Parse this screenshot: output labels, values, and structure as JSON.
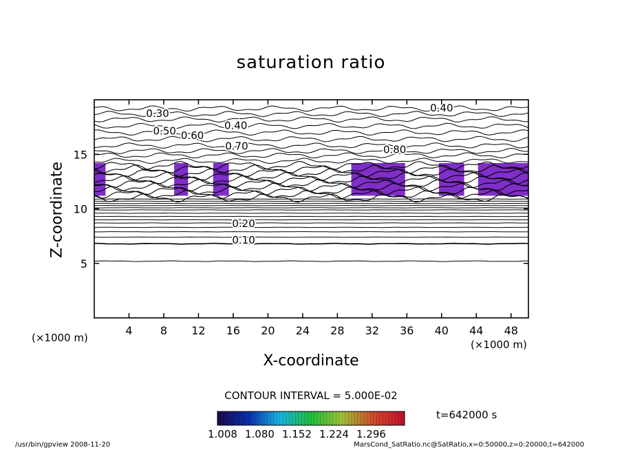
{
  "chart_data": {
    "type": "contour",
    "title": "saturation ratio",
    "xlabel": "X-coordinate",
    "ylabel": "Z-coordinate",
    "x_unit": "(×1000 m)",
    "y_unit": "(×1000 m)",
    "xlim": [
      0,
      50
    ],
    "ylim": [
      0,
      20
    ],
    "x_ticks": [
      4,
      8,
      12,
      16,
      20,
      24,
      28,
      32,
      36,
      40,
      44,
      48
    ],
    "y_ticks": [
      5,
      10,
      15
    ],
    "contour_labels": [
      {
        "text": "0.10",
        "x": 17.2,
        "z": 7.1
      },
      {
        "text": "0.20",
        "x": 17.2,
        "z": 8.6
      },
      {
        "text": "0.30",
        "x": 7.3,
        "z": 18.7
      },
      {
        "text": "0.40",
        "x": 16.3,
        "z": 17.6
      },
      {
        "text": "0.50",
        "x": 8.1,
        "z": 17.1
      },
      {
        "text": "0.60",
        "x": 11.3,
        "z": 16.7
      },
      {
        "text": "0.70",
        "x": 16.4,
        "z": 15.7
      },
      {
        "text": "0.80",
        "x": 34.6,
        "z": 15.4
      },
      {
        "text": "0.40",
        "x": 40.0,
        "z": 19.2
      }
    ],
    "supersaturated_regions_x": [
      [
        0,
        1.3
      ],
      [
        9.2,
        10.8
      ],
      [
        13.7,
        15.5
      ],
      [
        29.6,
        35.8
      ],
      [
        39.7,
        42.6
      ],
      [
        44.2,
        50
      ]
    ],
    "contour_interval": "CONTOUR INTERVAL = 5.000E-02",
    "colorbar": {
      "ticks": [
        "1.008",
        "1.080",
        "1.152",
        "1.224",
        "1.296"
      ],
      "colors": [
        "#1a0a4a",
        "#0b2fb0",
        "#19b6e0",
        "#1fbf3f",
        "#9fc23a",
        "#d24a2a",
        "#c2102d"
      ]
    },
    "fill_color": "#7f2ec8",
    "time_label": "t=642000 s"
  },
  "footer": {
    "left": "/usr/bin/gpview   2008-11-20",
    "right": "MarsCond_SatRatio.nc@SatRatio,x=0:50000,z=0:20000,t=642000"
  }
}
